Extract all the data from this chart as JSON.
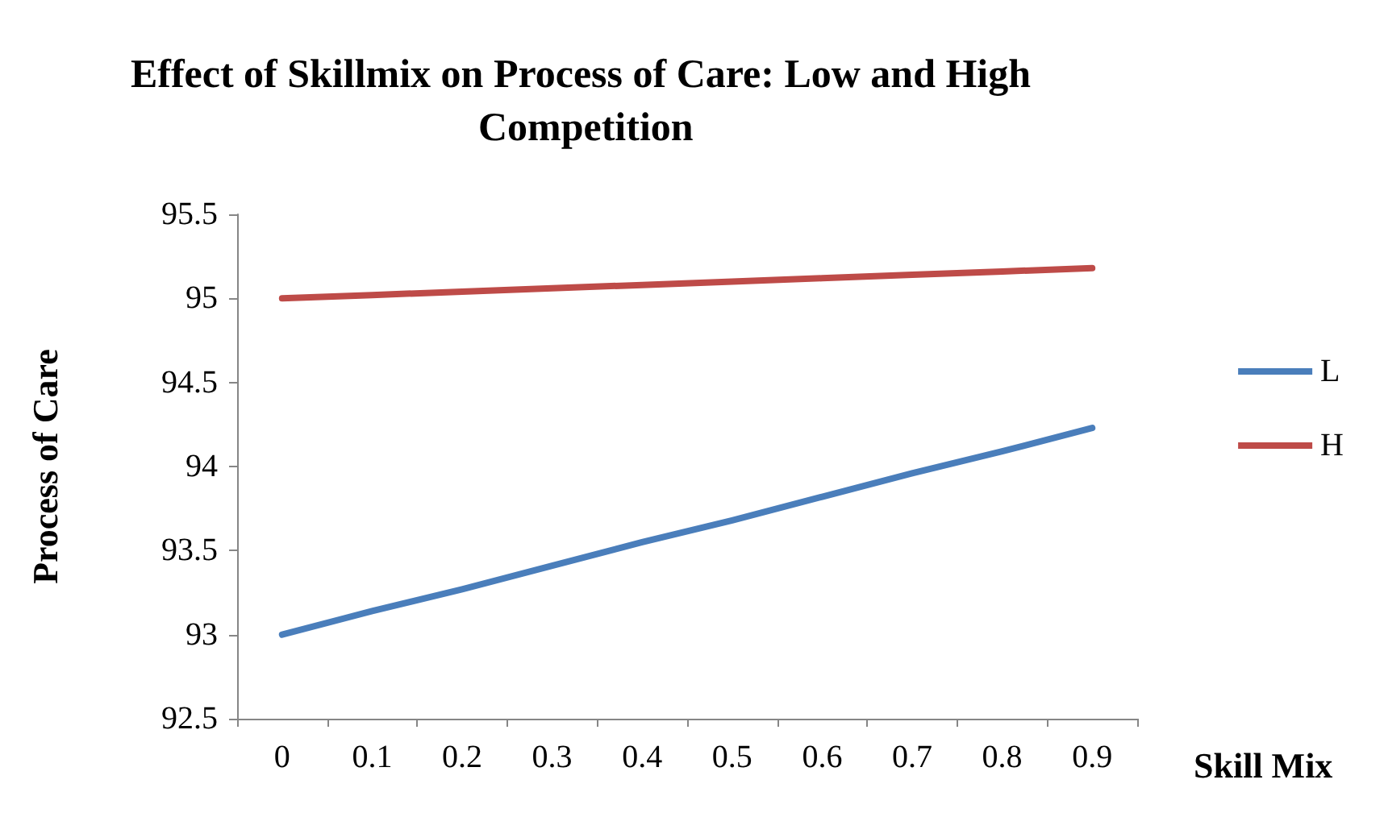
{
  "chart_data": {
    "type": "line",
    "title": "Effect of Skillmix on Process of Care: Low and High Competition",
    "xlabel": "Skill Mix",
    "ylabel": "Process of Care",
    "categories": [
      "0",
      "0.1",
      "0.2",
      "0.3",
      "0.4",
      "0.5",
      "0.6",
      "0.7",
      "0.8",
      "0.9"
    ],
    "series": [
      {
        "name": "L",
        "color": "#4a7ebb",
        "values": [
          93,
          93.14,
          93.27,
          93.41,
          93.55,
          93.68,
          93.82,
          93.96,
          94.09,
          94.23
        ]
      },
      {
        "name": "H",
        "color": "#be4b48",
        "values": [
          95,
          95.02,
          95.04,
          95.06,
          95.08,
          95.1,
          95.12,
          95.14,
          95.16,
          95.18
        ]
      }
    ],
    "ylim": [
      92.5,
      95.5
    ],
    "yticks": [
      92.5,
      93,
      93.5,
      94,
      94.5,
      95,
      95.5
    ],
    "grid": false,
    "legend": "right",
    "marker": "none",
    "line_style": "solid"
  }
}
